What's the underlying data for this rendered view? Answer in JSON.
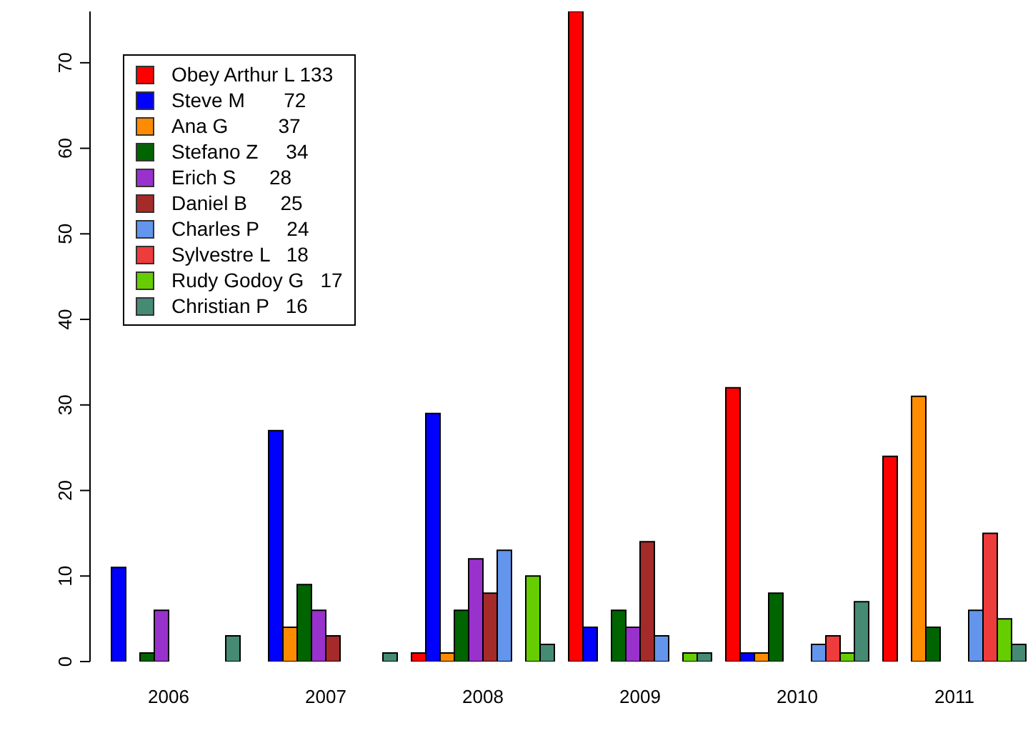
{
  "chart_data": {
    "type": "bar",
    "categories": [
      "2006",
      "2007",
      "2008",
      "2009",
      "2010",
      "2011"
    ],
    "series": [
      {
        "name": "Obey Arthur L 133",
        "color": "#ff0000",
        "values": [
          0,
          0,
          1,
          76,
          32,
          24
        ]
      },
      {
        "name": "Steve M       72",
        "color": "#0000ff",
        "values": [
          11,
          27,
          29,
          4,
          1,
          0
        ]
      },
      {
        "name": "Ana G         37",
        "color": "#ff8c00",
        "values": [
          0,
          4,
          1,
          0,
          1,
          31
        ]
      },
      {
        "name": "Stefano Z     34",
        "color": "#006400",
        "values": [
          1,
          9,
          6,
          6,
          8,
          4
        ]
      },
      {
        "name": "Erich S      28",
        "color": "#9932cc",
        "values": [
          6,
          6,
          12,
          4,
          0,
          0
        ]
      },
      {
        "name": "Daniel B      25",
        "color": "#a52a2a",
        "values": [
          0,
          3,
          8,
          14,
          0,
          0
        ]
      },
      {
        "name": "Charles P     24",
        "color": "#6495ed",
        "values": [
          0,
          0,
          13,
          3,
          2,
          6
        ]
      },
      {
        "name": "Sylvestre L   18",
        "color": "#ee3b3b",
        "values": [
          0,
          0,
          0,
          0,
          3,
          15
        ]
      },
      {
        "name": "Rudy Godoy G   17",
        "color": "#66cd00",
        "values": [
          0,
          0,
          10,
          1,
          1,
          5
        ]
      },
      {
        "name": "Christian P   16",
        "color": "#458b74",
        "values": [
          3,
          1,
          2,
          1,
          7,
          2
        ]
      }
    ],
    "ylim": [
      0,
      76
    ],
    "yticks": [
      0,
      10,
      20,
      30,
      40,
      50,
      60,
      70
    ],
    "grid": false,
    "legend": "top left"
  }
}
